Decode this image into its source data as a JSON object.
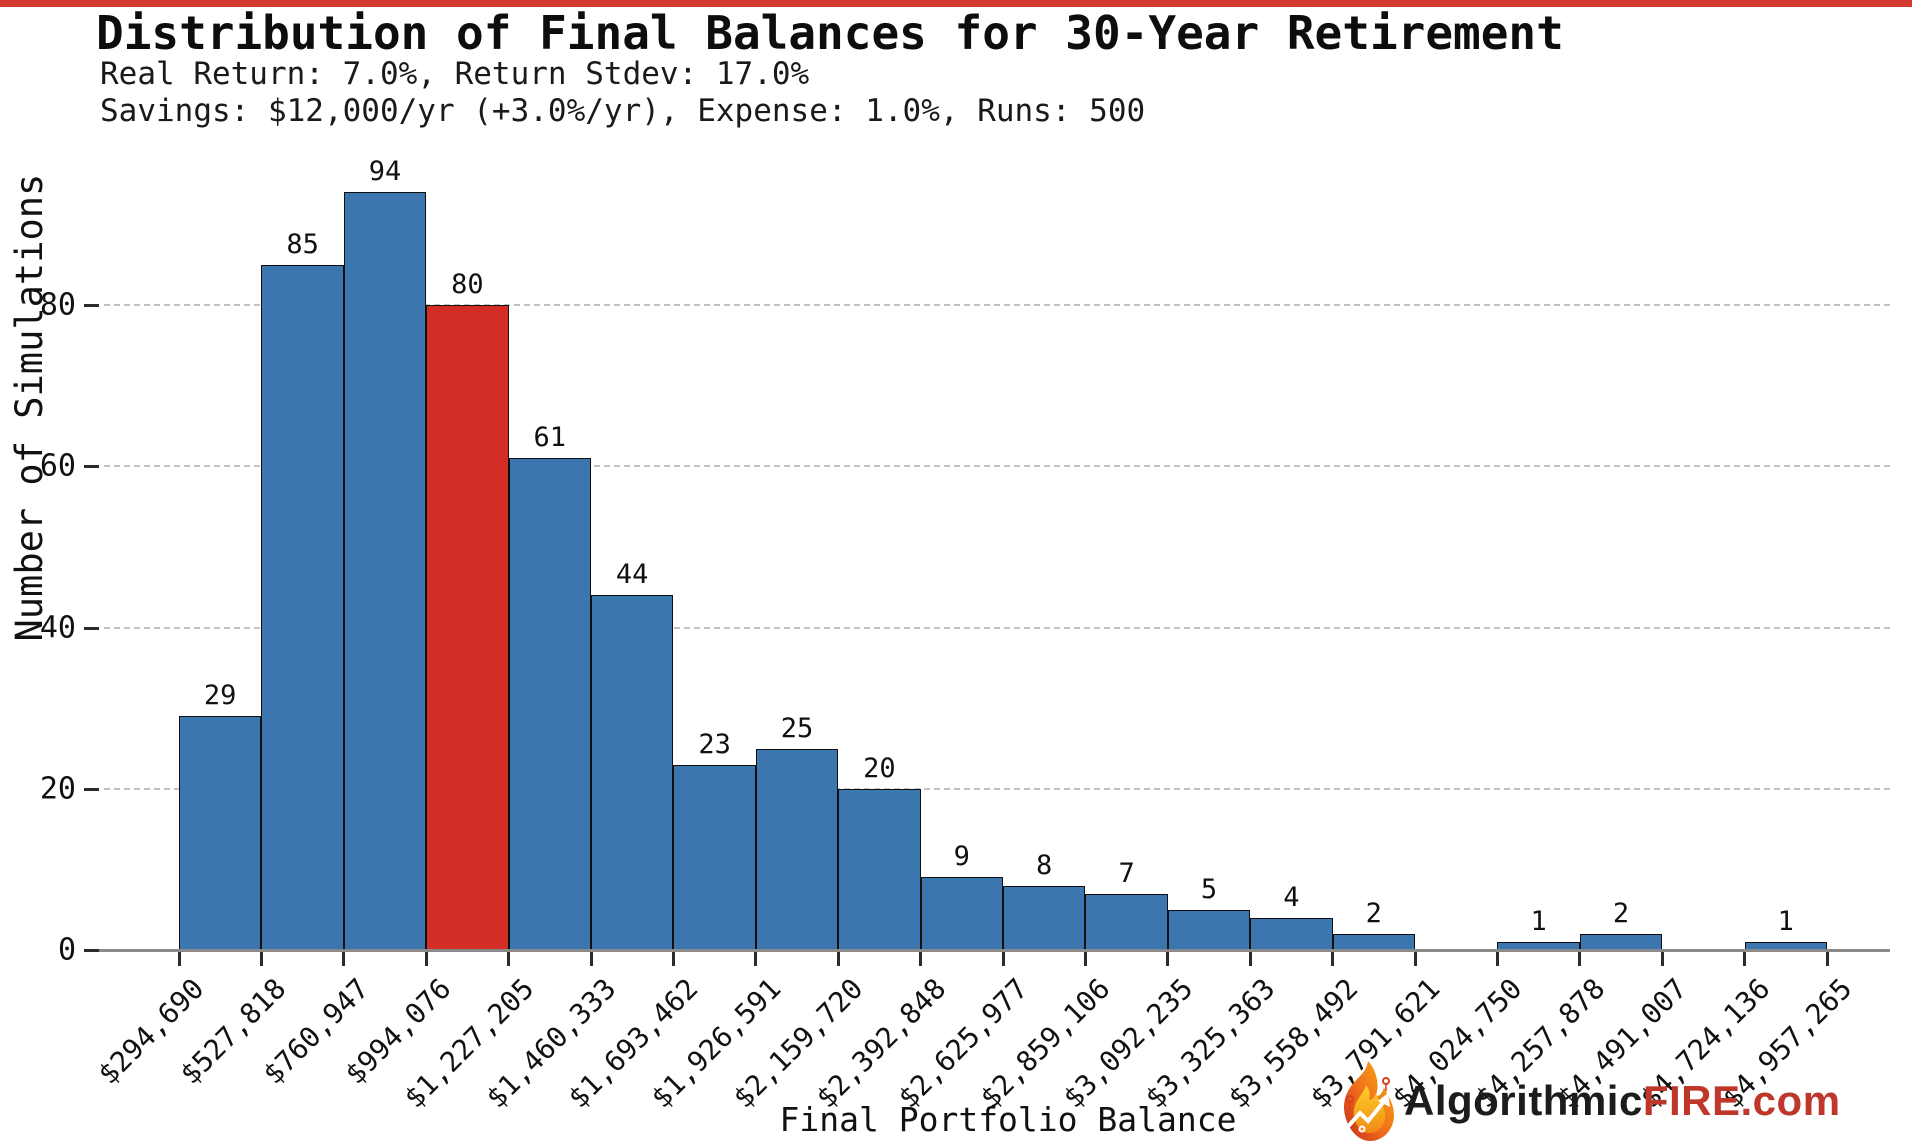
{
  "header": {
    "title": "Distribution of Final Balances for 30-Year Retirement",
    "subtitle_line1": "Real Return: 7.0%, Return Stdev: 17.0%",
    "subtitle_line2": "Savings: $12,000/yr (+3.0%/yr), Expense: 1.0%, Runs: 500"
  },
  "chart_data": {
    "type": "bar",
    "subtype": "histogram",
    "title": "Distribution of Final Balances for 30-Year Retirement",
    "xlabel": "Final Portfolio Balance",
    "ylabel": "Number of Simulations",
    "bin_edge_labels": [
      "$294,690",
      "$527,818",
      "$760,947",
      "$994,076",
      "$1,227,205",
      "$1,460,333",
      "$1,693,462",
      "$1,926,591",
      "$2,159,720",
      "$2,392,848",
      "$2,625,977",
      "$2,859,106",
      "$3,092,235",
      "$3,325,363",
      "$3,558,492",
      "$3,791,621",
      "$4,024,750",
      "$4,257,878",
      "$4,491,007",
      "$4,724,136",
      "$4,957,265"
    ],
    "counts": [
      29,
      85,
      94,
      80,
      61,
      44,
      23,
      25,
      20,
      9,
      8,
      7,
      5,
      4,
      2,
      0,
      1,
      2,
      0,
      1
    ],
    "highlight_bin_index": 3,
    "yticks": [
      0,
      20,
      40,
      60,
      80
    ],
    "ylim": [
      0,
      100
    ],
    "grid": "dashed horizontal at yticks",
    "legend": "none",
    "colors": {
      "bar_fill": "#3c76af",
      "bar_highlight_fill": "#d32d26",
      "bar_edge": "#101010",
      "gridline": "#c3c3c3",
      "axis_line": "#8a8a8a",
      "top_strip": "#d23b2e"
    }
  },
  "watermark": {
    "icon": "flame-circuit-icon",
    "text_black": "Algorithmic",
    "text_red": "FIRE.com"
  }
}
